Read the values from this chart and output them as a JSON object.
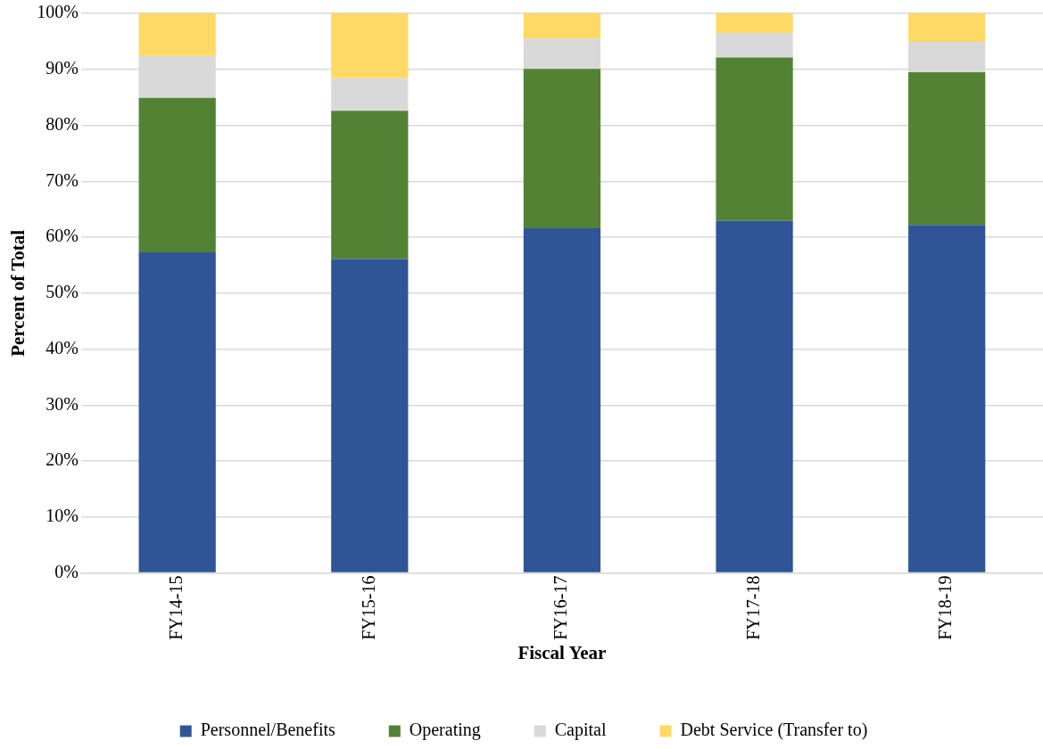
{
  "chart_data": {
    "type": "bar",
    "stacked": true,
    "xlabel": "Fiscal Year",
    "ylabel": "Percent of Total",
    "categories": [
      "FY14-15",
      "FY15-16",
      "FY16-17",
      "FY17-18",
      "FY18-19"
    ],
    "series": [
      {
        "name": "Personnel/Benefits",
        "color": "#2f5597",
        "values": [
          57.3,
          56.1,
          61.6,
          62.9,
          62.2
        ]
      },
      {
        "name": "Operating",
        "color": "#548235",
        "values": [
          27.6,
          26.5,
          28.5,
          29.2,
          27.3
        ]
      },
      {
        "name": "Capital",
        "color": "#d9d9d9",
        "values": [
          7.5,
          5.8,
          5.4,
          4.4,
          5.4
        ]
      },
      {
        "name": "Debt Service (Transfer to)",
        "color": "#ffd966",
        "values": [
          7.6,
          11.6,
          4.5,
          3.5,
          5.1
        ]
      }
    ],
    "ylim": [
      0,
      100
    ],
    "yticks": [
      {
        "value": 0,
        "label": "0%"
      },
      {
        "value": 10,
        "label": "10%"
      },
      {
        "value": 20,
        "label": "20%"
      },
      {
        "value": 30,
        "label": "30%"
      },
      {
        "value": 40,
        "label": "40%"
      },
      {
        "value": 50,
        "label": "50%"
      },
      {
        "value": 60,
        "label": "60%"
      },
      {
        "value": 70,
        "label": "70%"
      },
      {
        "value": 80,
        "label": "80%"
      },
      {
        "value": 90,
        "label": "90%"
      },
      {
        "value": 100,
        "label": "100%"
      }
    ],
    "grid": "y",
    "legend": "bottom"
  }
}
